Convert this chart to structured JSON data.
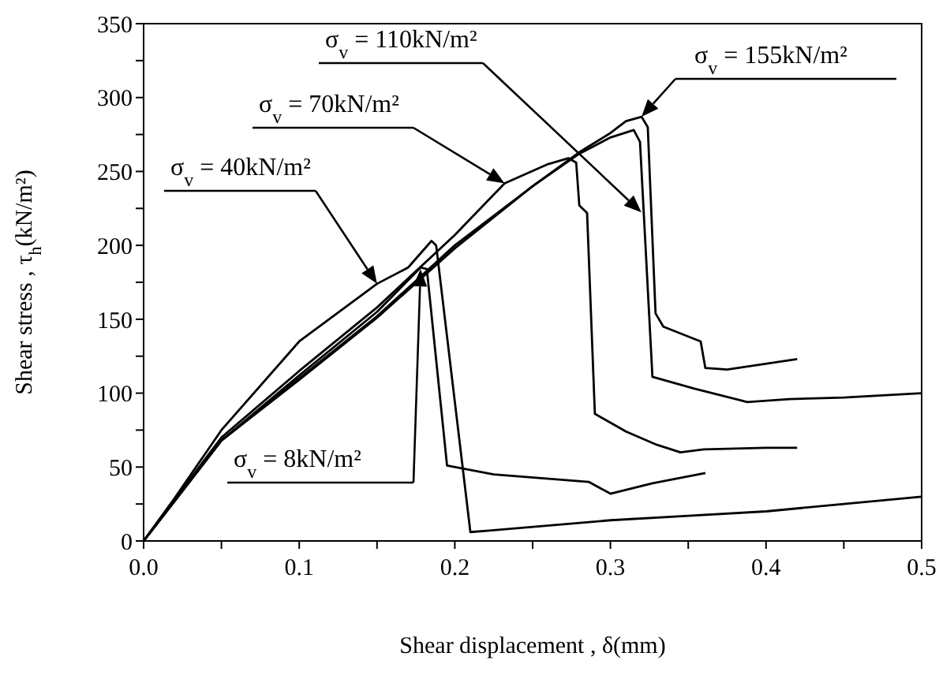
{
  "chart_data": {
    "type": "line",
    "xlabel": "Shear displacement , δ(mm)",
    "ylabel": "Shear stress , τ$_{h}$(kN/m²)",
    "xlim": [
      0,
      0.5
    ],
    "ylim": [
      0,
      350
    ],
    "xticks": [
      {
        "value": 0,
        "label": "0.0"
      },
      {
        "value": 0.05,
        "label": null
      },
      0.1,
      {
        "value": 0.15,
        "label": null
      },
      0.2,
      {
        "value": 0.25,
        "label": null
      },
      0.3,
      {
        "value": 0.35,
        "label": null
      },
      0.4,
      {
        "value": 0.45,
        "label": null
      },
      0.5
    ],
    "yticks": [
      0,
      {
        "value": 25,
        "label": null
      },
      50,
      {
        "value": 75,
        "label": null
      },
      100,
      {
        "value": 125,
        "label": null
      },
      150,
      {
        "value": 175,
        "label": null
      },
      200,
      {
        "value": 225,
        "label": null
      },
      250,
      {
        "value": 275,
        "label": null
      },
      300,
      {
        "value": 325,
        "label": null
      },
      350
    ],
    "series": [
      {
        "name": "σ$_{v}$ = 8kN/m²",
        "color": "#000000",
        "x": [
          0,
          0.02,
          0.05,
          0.1,
          0.15,
          0.178,
          0.182,
          0.195,
          0.225,
          0.286,
          0.3,
          0.327,
          0.361
        ],
        "values": [
          0,
          27,
          68,
          112,
          155,
          185,
          184,
          51,
          45,
          40,
          32,
          39,
          46
        ]
      },
      {
        "name": "σ$_{v}$ = 40kN/m²",
        "color": "#000000",
        "x": [
          0,
          0.02,
          0.05,
          0.1,
          0.15,
          0.17,
          0.185,
          0.188,
          0.21,
          0.222,
          0.3,
          0.35,
          0.4,
          0.45,
          0.5
        ],
        "values": [
          0,
          29,
          75,
          135,
          174,
          185,
          203,
          200,
          6,
          7,
          14,
          17,
          20,
          25,
          30
        ]
      },
      {
        "name": "σ$_{v}$ = 70kN/m²",
        "color": "#000000",
        "x": [
          0,
          0.05,
          0.1,
          0.15,
          0.2,
          0.232,
          0.26,
          0.273,
          0.278,
          0.28,
          0.285,
          0.29,
          0.31,
          0.33,
          0.345,
          0.36,
          0.4,
          0.42
        ],
        "values": [
          0,
          70,
          115,
          158,
          207,
          242,
          255,
          259,
          256,
          227,
          222,
          86,
          74,
          65,
          60,
          62,
          63,
          63
        ]
      },
      {
        "name": "σ$_{v}$ = 110kN/m²",
        "color": "#000000",
        "x": [
          0,
          0.05,
          0.1,
          0.15,
          0.2,
          0.25,
          0.28,
          0.3,
          0.315,
          0.319,
          0.327,
          0.354,
          0.388,
          0.415,
          0.45,
          0.5
        ],
        "values": [
          0,
          68,
          110,
          152,
          200,
          240,
          262,
          273,
          278,
          270,
          111,
          103,
          94,
          96,
          97,
          100
        ]
      },
      {
        "name": "σ$_{v}$ = 155kN/m²",
        "color": "#000000",
        "x": [
          0,
          0.05,
          0.1,
          0.15,
          0.2,
          0.25,
          0.28,
          0.3,
          0.31,
          0.32,
          0.324,
          0.329,
          0.334,
          0.358,
          0.361,
          0.375,
          0.42
        ],
        "values": [
          0,
          68,
          109,
          151,
          198,
          240,
          263,
          276,
          284,
          287,
          280,
          154,
          145,
          135,
          117,
          116,
          123
        ]
      }
    ]
  }
}
